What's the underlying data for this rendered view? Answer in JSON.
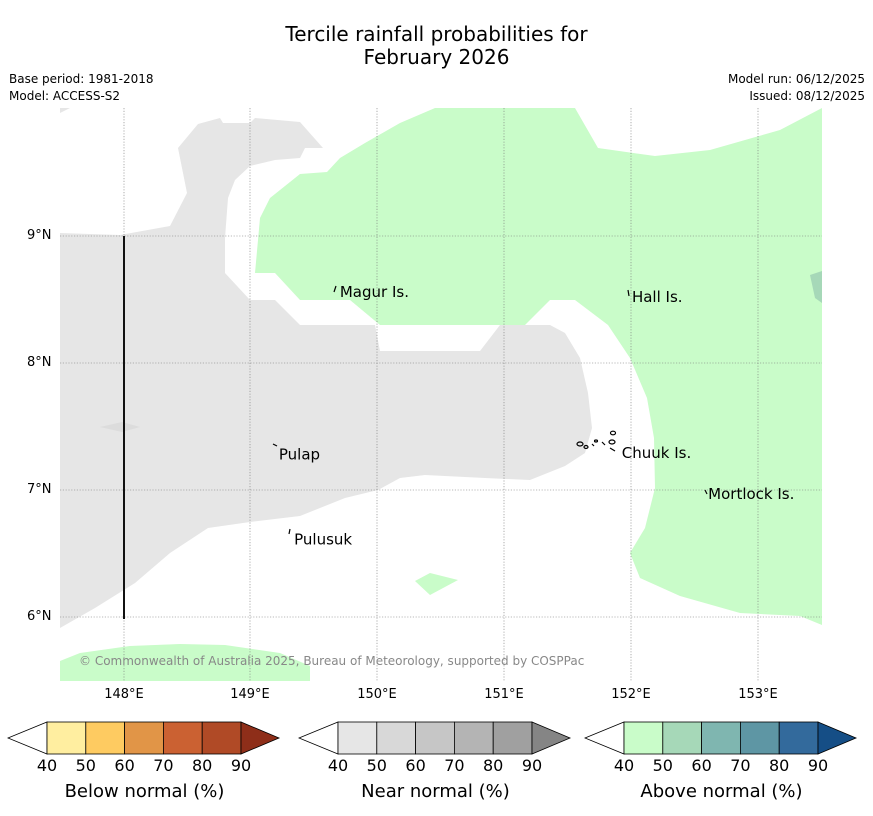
{
  "title_line1": "Tercile rainfall probabilities for",
  "title_line2": "February 2026",
  "meta": {
    "base_period": "Base period: 1981-2018",
    "model": "Model: ACCESS-S2",
    "model_run": "Model run: 06/12/2025",
    "issued": "Issued: 08/12/2025"
  },
  "map": {
    "lon_ticks": [
      "148°E",
      "149°E",
      "150°E",
      "151°E",
      "152°E",
      "153°E"
    ],
    "lat_ticks": [
      "9°N",
      "8°N",
      "7°N",
      "6°N"
    ],
    "places": [
      {
        "name": "Magur Is.",
        "lon": 149.68,
        "lat": 8.56
      },
      {
        "name": "Hall Is.",
        "lon": 151.98,
        "lat": 8.52
      },
      {
        "name": "Pulap",
        "lon": 149.2,
        "lat": 7.28
      },
      {
        "name": "Chuuk Is.",
        "lon": 151.9,
        "lat": 7.29
      },
      {
        "name": "Mortlock Is.",
        "lon": 152.58,
        "lat": 6.97
      },
      {
        "name": "Pulusuk",
        "lon": 149.32,
        "lat": 6.61
      }
    ],
    "copyright": "© Commonwealth of Australia 2025, Bureau of Meteorology, supported by COSPPac"
  },
  "colorbars": [
    {
      "label": "Below normal (%)",
      "ticks": [
        "40",
        "50",
        "60",
        "70",
        "80",
        "90"
      ],
      "colors": [
        "#ffeea0",
        "#fecb61",
        "#e19547",
        "#cb6132",
        "#b04a26",
        "#8e2e19"
      ]
    },
    {
      "label": "Near normal (%)",
      "ticks": [
        "40",
        "50",
        "60",
        "70",
        "80",
        "90"
      ],
      "colors": [
        "#e6e6e6",
        "#d8d8d8",
        "#c6c6c6",
        "#b4b4b4",
        "#a0a0a0",
        "#858585"
      ]
    },
    {
      "label": "Above normal (%)",
      "ticks": [
        "40",
        "50",
        "60",
        "70",
        "80",
        "90"
      ],
      "colors": [
        "#c9fcc9",
        "#a6d8b8",
        "#7fb6b0",
        "#5e96a4",
        "#336a9c",
        "#154e86"
      ]
    }
  ]
}
